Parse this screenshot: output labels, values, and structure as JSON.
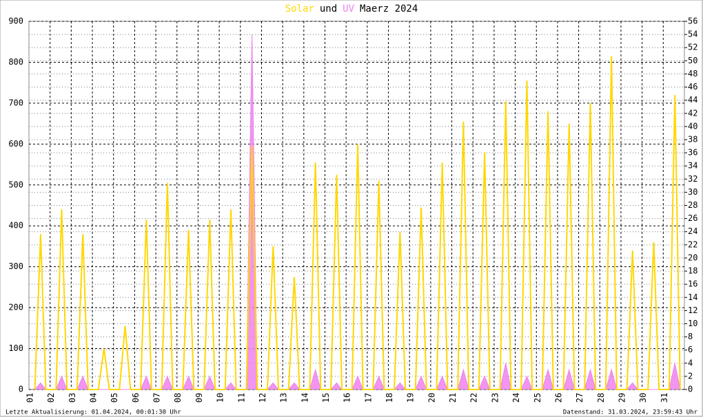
{
  "chart_data": {
    "type": "line",
    "title": "Maerz 2024",
    "title_join": "und",
    "footer_left": "Letzte Aktualisierung: 01.04.2024, 00:01:30 Uhr",
    "footer_right": "Datenstand: 31.03.2024, 23:59:43 Uhr",
    "grid": true,
    "xlim": [
      1,
      32
    ],
    "xticks": [
      {
        "value": 1,
        "label": "01"
      },
      {
        "value": 2,
        "label": "02"
      },
      {
        "value": 3,
        "label": "03"
      },
      {
        "value": 4,
        "label": "04"
      },
      {
        "value": 5,
        "label": "05"
      },
      {
        "value": 6,
        "label": "06"
      },
      {
        "value": 7,
        "label": "07"
      },
      {
        "value": 8,
        "label": "08"
      },
      {
        "value": 9,
        "label": "09"
      },
      {
        "value": 10,
        "label": "10"
      },
      {
        "value": 11,
        "label": "11"
      },
      {
        "value": 12,
        "label": "12"
      },
      {
        "value": 13,
        "label": "13"
      },
      {
        "value": 14,
        "label": "14"
      },
      {
        "value": 15,
        "label": "15"
      },
      {
        "value": 16,
        "label": "16"
      },
      {
        "value": 17,
        "label": "17"
      },
      {
        "value": 18,
        "label": "18"
      },
      {
        "value": 19,
        "label": "19"
      },
      {
        "value": 20,
        "label": "20"
      },
      {
        "value": 21,
        "label": "21"
      },
      {
        "value": 22,
        "label": "22"
      },
      {
        "value": 23,
        "label": "23"
      },
      {
        "value": 24,
        "label": "24"
      },
      {
        "value": 25,
        "label": "25"
      },
      {
        "value": 26,
        "label": "26"
      },
      {
        "value": 27,
        "label": "27"
      },
      {
        "value": 28,
        "label": "28"
      },
      {
        "value": 29,
        "label": "29"
      },
      {
        "value": 30,
        "label": "30"
      },
      {
        "value": 31,
        "label": "31"
      }
    ],
    "ylim": [
      0,
      900
    ],
    "yticks": [
      0,
      100,
      200,
      300,
      400,
      500,
      600,
      700,
      800,
      900
    ],
    "y2lim": [
      0,
      56
    ],
    "y2ticks": [
      0,
      2,
      4,
      6,
      8,
      10,
      12,
      14,
      16,
      18,
      20,
      22,
      24,
      26,
      28,
      30,
      32,
      34,
      36,
      38,
      40,
      42,
      44,
      46,
      48,
      50,
      52,
      54,
      56
    ],
    "x": [
      1.28,
      1.55,
      1.8,
      2.28,
      2.55,
      2.8,
      3.28,
      3.55,
      3.8,
      4.28,
      4.55,
      4.8,
      5.28,
      5.55,
      5.8,
      6.28,
      6.55,
      6.8,
      7.28,
      7.55,
      7.8,
      8.28,
      8.55,
      8.8,
      9.28,
      9.55,
      9.8,
      10.28,
      10.55,
      10.8,
      11.28,
      11.55,
      11.8,
      12.28,
      12.55,
      12.8,
      13.28,
      13.55,
      13.8,
      14.28,
      14.55,
      14.8,
      15.28,
      15.55,
      15.8,
      16.28,
      16.55,
      16.8,
      17.28,
      17.55,
      17.8,
      18.28,
      18.55,
      18.8,
      19.28,
      19.55,
      19.8,
      20.28,
      20.55,
      20.8,
      21.28,
      21.55,
      21.8,
      22.28,
      22.55,
      22.8,
      23.28,
      23.55,
      23.8,
      24.28,
      24.55,
      24.8,
      25.28,
      25.55,
      25.8,
      26.28,
      26.55,
      26.8,
      27.28,
      27.55,
      27.8,
      28.28,
      28.55,
      28.8,
      29.28,
      29.55,
      29.8,
      30.28,
      30.55,
      30.8,
      31.28,
      31.55,
      31.8
    ],
    "series": [
      {
        "name": "Solar",
        "color": "#ffd700",
        "values": [
          0,
          380,
          0,
          0,
          440,
          0,
          0,
          380,
          0,
          0,
          100,
          0,
          0,
          155,
          0,
          0,
          415,
          0,
          0,
          505,
          0,
          0,
          390,
          0,
          0,
          415,
          0,
          0,
          440,
          0,
          0,
          595,
          0,
          0,
          350,
          0,
          0,
          275,
          0,
          0,
          555,
          0,
          0,
          525,
          0,
          0,
          600,
          0,
          0,
          510,
          0,
          0,
          385,
          0,
          0,
          445,
          0,
          0,
          555,
          0,
          0,
          655,
          0,
          0,
          580,
          0,
          0,
          705,
          0,
          0,
          755,
          0,
          0,
          680,
          0,
          0,
          650,
          0,
          0,
          700,
          0,
          0,
          815,
          0,
          0,
          340,
          0,
          0,
          360,
          0,
          0,
          720,
          0
        ]
      },
      {
        "name": "UV",
        "color": "#ee82ee",
        "axis": "y2",
        "values": [
          0,
          1,
          0,
          0,
          2,
          0,
          0,
          2,
          0,
          0,
          0,
          0,
          0,
          0,
          0,
          0,
          2,
          0,
          0,
          2,
          0,
          0,
          2,
          0,
          0,
          2,
          0,
          0,
          1,
          0,
          0,
          54,
          0,
          0,
          1,
          0,
          0,
          1,
          0,
          0,
          3,
          0,
          0,
          1,
          0,
          0,
          2,
          0,
          0,
          2,
          0,
          0,
          1,
          0,
          0,
          2,
          0,
          0,
          2,
          0,
          0,
          3,
          0,
          0,
          2,
          0,
          0,
          4,
          0,
          0,
          2,
          0,
          0,
          3,
          0,
          0,
          3,
          0,
          0,
          3,
          0,
          0,
          3,
          0,
          0,
          1,
          0,
          0,
          0,
          0,
          0,
          4,
          0
        ]
      }
    ]
  }
}
